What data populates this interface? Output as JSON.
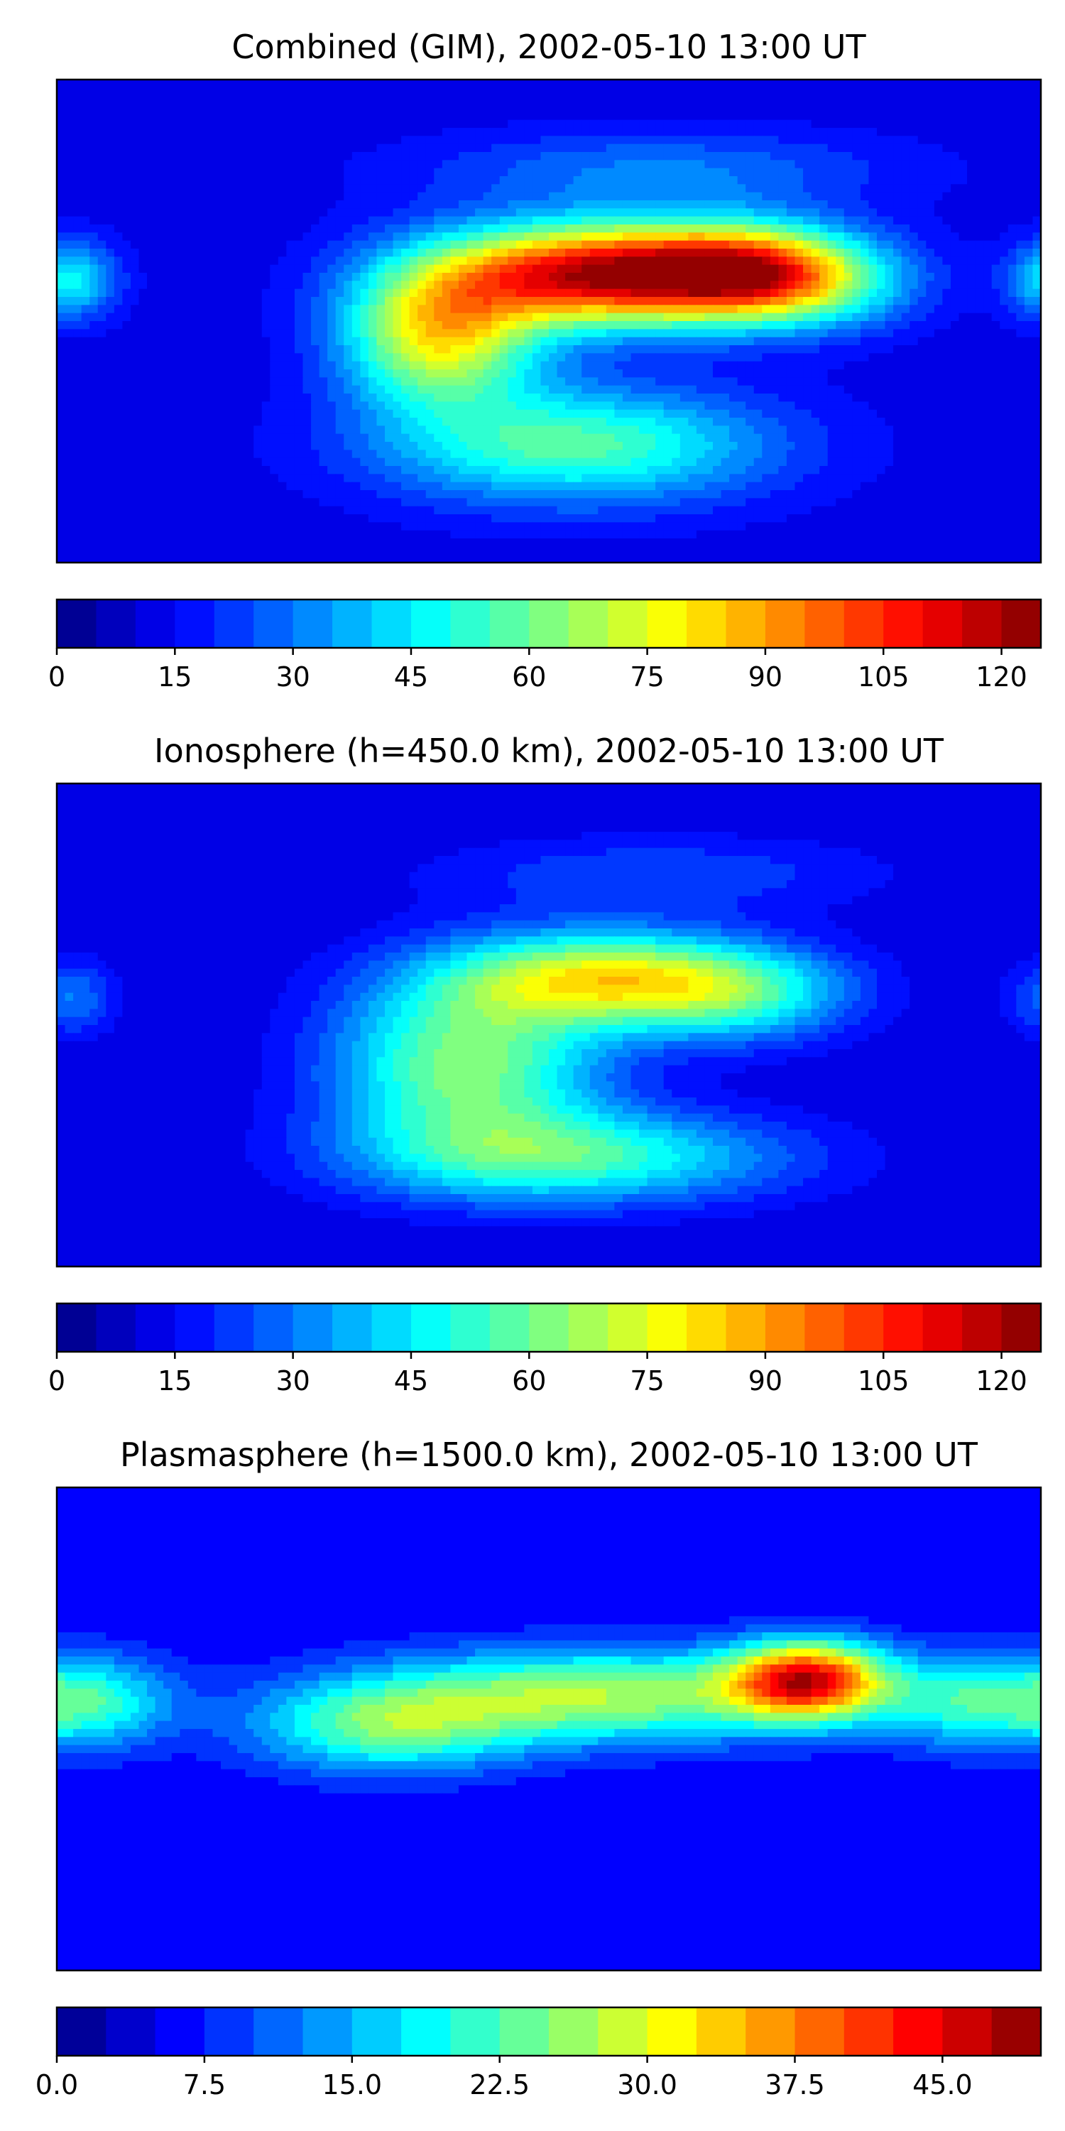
{
  "panels": [
    {
      "title": "Combined (GIM), 2002-05-10 13:00 UT",
      "colorbar": {
        "min": 0,
        "max": 125,
        "levels": 25,
        "ticks": [
          0,
          15,
          30,
          45,
          60,
          75,
          90,
          105,
          120
        ],
        "tick_labels": [
          "0",
          "15",
          "30",
          "45",
          "60",
          "75",
          "90",
          "105",
          "120"
        ]
      },
      "field": {
        "base": 12,
        "blobs": [
          {
            "lon": 20,
            "lat": 17,
            "amp": 105,
            "slon": 42,
            "slat": 13
          },
          {
            "lon": 70,
            "lat": 18,
            "amp": 55,
            "slon": 25,
            "slat": 12
          },
          {
            "lon": -40,
            "lat": -5,
            "amp": 65,
            "slon": 25,
            "slat": 18
          },
          {
            "lon": 10,
            "lat": -45,
            "amp": 45,
            "slon": 50,
            "slat": 15
          },
          {
            "lon": 100,
            "lat": 15,
            "amp": 35,
            "slon": 25,
            "slat": 12
          },
          {
            "lon": -175,
            "lat": 15,
            "amp": 35,
            "slon": 12,
            "slat": 10
          },
          {
            "lon": 40,
            "lat": 55,
            "amp": 18,
            "slon": 60,
            "slat": 10
          }
        ]
      }
    },
    {
      "title": "Ionosphere  (h=450.0 km), 2002-05-10 13:00 UT",
      "colorbar": {
        "min": 0,
        "max": 125,
        "levels": 25,
        "ticks": [
          0,
          15,
          30,
          45,
          60,
          75,
          90,
          105,
          120
        ],
        "tick_labels": [
          "0",
          "15",
          "30",
          "45",
          "60",
          "75",
          "90",
          "105",
          "120"
        ]
      },
      "field": {
        "base": 10,
        "blobs": [
          {
            "lon": 20,
            "lat": 17,
            "amp": 62,
            "slon": 42,
            "slat": 12
          },
          {
            "lon": -30,
            "lat": -15,
            "amp": 52,
            "slon": 35,
            "slat": 22
          },
          {
            "lon": 10,
            "lat": -48,
            "amp": 42,
            "slon": 55,
            "slat": 12
          },
          {
            "lon": 70,
            "lat": 10,
            "amp": 30,
            "slon": 30,
            "slat": 12
          },
          {
            "lon": -175,
            "lat": 10,
            "amp": 20,
            "slon": 12,
            "slat": 10
          },
          {
            "lon": 40,
            "lat": 55,
            "amp": 14,
            "slon": 60,
            "slat": 10
          }
        ]
      }
    },
    {
      "title": "Plasmasphere (h=1500.0 km), 2002-05-10 13:00 UT",
      "colorbar": {
        "min": 0,
        "max": 50,
        "levels": 20,
        "ticks": [
          0,
          7.5,
          15,
          22.5,
          30,
          37.5,
          45
        ],
        "tick_labels": [
          "0.0",
          "7.5",
          "15.0",
          "22.5",
          "30.0",
          "37.5",
          "45.0"
        ]
      },
      "field": {
        "base": 5,
        "blobs": [
          {
            "lon": 95,
            "lat": 18,
            "amp": 34,
            "slon": 20,
            "slat": 10
          },
          {
            "lon": 20,
            "lat": 12,
            "amp": 22,
            "slon": 60,
            "slat": 12
          },
          {
            "lon": -60,
            "lat": 0,
            "amp": 16,
            "slon": 35,
            "slat": 12
          },
          {
            "lon": -170,
            "lat": 10,
            "amp": 17,
            "slon": 22,
            "slat": 12
          },
          {
            "lon": 150,
            "lat": 10,
            "amp": 12,
            "slon": 20,
            "slat": 12
          }
        ]
      }
    }
  ]
}
